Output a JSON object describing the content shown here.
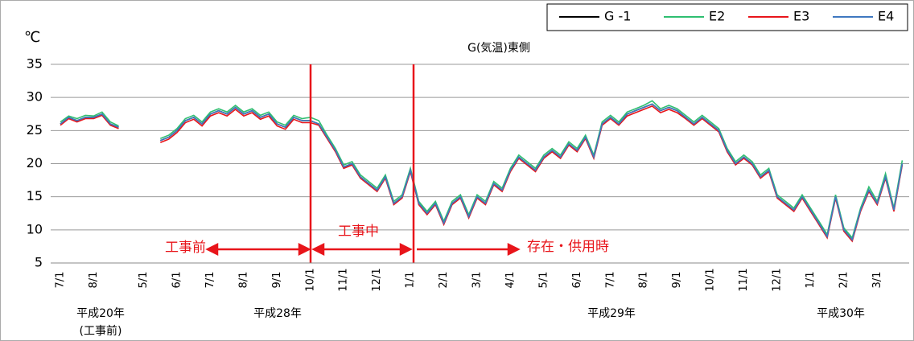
{
  "chart_data": {
    "type": "line",
    "subtitle": "G(気温)東側",
    "y_label": "℃",
    "categories": [
      "7/1",
      null,
      null,
      null,
      "8/1",
      null,
      null,
      null,
      null,
      null,
      "5/1",
      null,
      null,
      null,
      "6/1",
      null,
      null,
      null,
      "7/1",
      null,
      null,
      null,
      "8/1",
      null,
      null,
      null,
      "9/1",
      null,
      null,
      null,
      "10/1",
      null,
      null,
      null,
      "11/1",
      null,
      null,
      null,
      "12/1",
      null,
      null,
      null,
      "1/1",
      null,
      null,
      null,
      "2/1",
      null,
      null,
      null,
      "3/1",
      null,
      null,
      null,
      "4/1",
      null,
      null,
      null,
      "5/1",
      null,
      null,
      null,
      "6/1",
      null,
      null,
      null,
      "7/1",
      null,
      null,
      null,
      "8/1",
      null,
      null,
      null,
      "9/1",
      null,
      null,
      null,
      "10/1",
      null,
      null,
      null,
      "11/1",
      null,
      null,
      null,
      "12/1",
      null,
      null,
      null,
      "1/1",
      null,
      null,
      null,
      "2/1",
      null,
      null,
      null,
      "3/1",
      null,
      null,
      null
    ],
    "series": [
      {
        "name": "G -1",
        "color": "#000000",
        "values": [
          26,
          27,
          26.5,
          27,
          27,
          27.5,
          26,
          25.5,
          null,
          null,
          null,
          null,
          23.5,
          24,
          25,
          26.5,
          27,
          26,
          27.5,
          28,
          27.5,
          28.5,
          27.5,
          28,
          27,
          27.5,
          26,
          25.5,
          27,
          26.5,
          26.5,
          26,
          24,
          22,
          19.5,
          20,
          18,
          17,
          16,
          18,
          14,
          15,
          19,
          14,
          12.5,
          14,
          11,
          14,
          15,
          12,
          15,
          14,
          17,
          16,
          19,
          21,
          20,
          19,
          21,
          22,
          21,
          23,
          22,
          24,
          21,
          26,
          27,
          26,
          27.5,
          28,
          28.5,
          29,
          28,
          28.5,
          28,
          27,
          26,
          27,
          26,
          25,
          22,
          20,
          21,
          20,
          18,
          19,
          15,
          14,
          13,
          15,
          13,
          11,
          9,
          15,
          10,
          8.5,
          13,
          16,
          14,
          18,
          13,
          20
        ]
      },
      {
        "name": "E2",
        "color": "#2fbf71",
        "values": [
          26.3,
          27.2,
          26.8,
          27.3,
          27.2,
          27.8,
          26.3,
          25.7,
          null,
          null,
          null,
          null,
          23.8,
          24.3,
          25.3,
          26.8,
          27.3,
          26.3,
          27.8,
          28.3,
          27.8,
          28.8,
          27.8,
          28.3,
          27.3,
          27.8,
          26.3,
          25.8,
          27.3,
          26.8,
          27,
          26.5,
          24.3,
          22.3,
          19.8,
          20.3,
          18.3,
          17.3,
          16.3,
          18.3,
          14.3,
          15.3,
          19.3,
          14.3,
          12.8,
          14.3,
          11.3,
          14.3,
          15.3,
          12.3,
          15.3,
          14.3,
          17.3,
          16.3,
          19.3,
          21.3,
          20.3,
          19.3,
          21.3,
          22.3,
          21.3,
          23.3,
          22.3,
          24.3,
          21.3,
          26.3,
          27.3,
          26.3,
          27.8,
          28.3,
          28.8,
          29.5,
          28.3,
          28.8,
          28.3,
          27.3,
          26.3,
          27.3,
          26.3,
          25.3,
          22.3,
          20.3,
          21.3,
          20.3,
          18.3,
          19.3,
          15.3,
          14.3,
          13.3,
          15.3,
          13.3,
          11.3,
          9.3,
          15.3,
          10.3,
          8.8,
          13.3,
          16.5,
          14.3,
          18.5,
          13.3,
          20.5
        ]
      },
      {
        "name": "E3",
        "color": "#e8151b",
        "values": [
          25.8,
          26.8,
          26.3,
          26.8,
          26.8,
          27.3,
          25.8,
          25.3,
          null,
          null,
          null,
          null,
          23.2,
          23.7,
          24.7,
          26.2,
          26.7,
          25.7,
          27.2,
          27.7,
          27.2,
          28.2,
          27.2,
          27.7,
          26.7,
          27.2,
          25.7,
          25.2,
          26.7,
          26.2,
          26.2,
          25.8,
          23.8,
          21.8,
          19.3,
          19.8,
          17.8,
          16.8,
          15.8,
          17.8,
          13.8,
          14.8,
          18.8,
          13.8,
          12.3,
          13.8,
          10.8,
          13.8,
          14.8,
          11.8,
          14.8,
          13.8,
          16.8,
          15.8,
          18.8,
          20.8,
          19.8,
          18.8,
          20.8,
          21.8,
          20.8,
          22.8,
          21.8,
          23.8,
          20.8,
          25.8,
          26.8,
          25.8,
          27.2,
          27.7,
          28.2,
          28.7,
          27.7,
          28.2,
          27.7,
          26.8,
          25.8,
          26.8,
          25.8,
          24.8,
          21.8,
          19.8,
          20.8,
          19.8,
          17.8,
          18.8,
          14.8,
          13.8,
          12.8,
          14.8,
          12.8,
          10.8,
          8.8,
          14.8,
          9.8,
          8.3,
          12.8,
          15.8,
          13.8,
          17.8,
          12.8,
          19.8
        ]
      },
      {
        "name": "E4",
        "color": "#3f78c0",
        "values": [
          26,
          27,
          26.5,
          27,
          27,
          27.5,
          26,
          25.5,
          null,
          null,
          null,
          null,
          23.5,
          24,
          25,
          26.5,
          27,
          26,
          27.5,
          28,
          27.5,
          28.5,
          27.5,
          28,
          27,
          27.5,
          26,
          25.5,
          27,
          26.5,
          26.5,
          26,
          24,
          22,
          19.5,
          20,
          18,
          17,
          16,
          18,
          14,
          15,
          19,
          14,
          12.5,
          14,
          11,
          14,
          15,
          12,
          15,
          14,
          17,
          16,
          19,
          21,
          20,
          19,
          21,
          22,
          21,
          23,
          22,
          24,
          21,
          26,
          27,
          26,
          27.5,
          28,
          28.5,
          29,
          28,
          28.5,
          28,
          27,
          26,
          27,
          26,
          25,
          22,
          20,
          21,
          20,
          18,
          19,
          15,
          14,
          13,
          15,
          13,
          11,
          9,
          15,
          10,
          8.5,
          13,
          16,
          14,
          18,
          13,
          20
        ]
      }
    ],
    "ylim": [
      5,
      35
    ],
    "yticks": [
      5,
      10,
      15,
      20,
      25,
      30,
      35
    ],
    "grid": true,
    "legend": "top-right",
    "annotations": [
      "工事前",
      "工事中",
      "存在・供用時"
    ],
    "period_labels": [
      "平成20年",
      "(工事前)",
      "平成28年",
      "平成29年",
      "平成30年"
    ]
  }
}
